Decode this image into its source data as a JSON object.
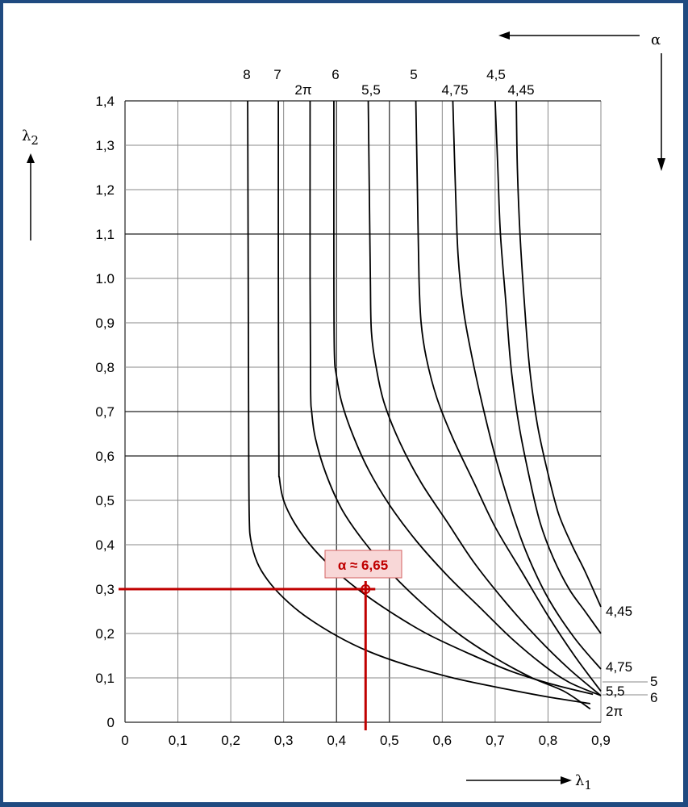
{
  "chart_data": {
    "type": "line",
    "title": "",
    "xlabel": "λ1",
    "ylabel": "λ2",
    "family_label": "α",
    "xlim": [
      0,
      0.9
    ],
    "ylim": [
      0,
      1.4
    ],
    "grid": true,
    "x_ticks": [
      "0",
      "0,1",
      "0,2",
      "0,3",
      "0,4",
      "0,5",
      "0,6",
      "0,7",
      "0,8",
      "0,9"
    ],
    "y_ticks": [
      "0",
      "0,1",
      "0,2",
      "0,3",
      "0,4",
      "0,5",
      "0,6",
      "0,7",
      "0,8",
      "0,9",
      "1.0",
      "1,1",
      "1,2",
      "1,3",
      "1,4"
    ],
    "series": [
      {
        "name": "8",
        "top_label": "8",
        "right_label": "",
        "points": [
          [
            0.232,
            1.4
          ],
          [
            0.233,
            1.0
          ],
          [
            0.234,
            0.6
          ],
          [
            0.235,
            0.46
          ],
          [
            0.238,
            0.41
          ],
          [
            0.25,
            0.36
          ],
          [
            0.27,
            0.32
          ],
          [
            0.3,
            0.28
          ],
          [
            0.34,
            0.24
          ],
          [
            0.4,
            0.195
          ],
          [
            0.46,
            0.16
          ],
          [
            0.53,
            0.13
          ],
          [
            0.62,
            0.1
          ],
          [
            0.72,
            0.075
          ],
          [
            0.8,
            0.057
          ],
          [
            0.88,
            0.042
          ]
        ]
      },
      {
        "name": "7",
        "top_label": "7",
        "right_label": "",
        "points": [
          [
            0.29,
            1.4
          ],
          [
            0.29,
            1.0
          ],
          [
            0.291,
            0.6
          ],
          [
            0.292,
            0.55
          ],
          [
            0.3,
            0.5
          ],
          [
            0.32,
            0.45
          ],
          [
            0.35,
            0.4
          ],
          [
            0.39,
            0.35
          ],
          [
            0.44,
            0.3
          ],
          [
            0.5,
            0.25
          ],
          [
            0.57,
            0.2
          ],
          [
            0.65,
            0.155
          ],
          [
            0.73,
            0.115
          ],
          [
            0.81,
            0.085
          ],
          [
            0.885,
            0.063
          ]
        ]
      },
      {
        "name": "2π",
        "top_label": "2π",
        "right_label": "2π",
        "points": [
          [
            0.35,
            1.4
          ],
          [
            0.35,
            1.0
          ],
          [
            0.351,
            0.75
          ],
          [
            0.353,
            0.7
          ],
          [
            0.36,
            0.64
          ],
          [
            0.38,
            0.56
          ],
          [
            0.41,
            0.48
          ],
          [
            0.45,
            0.41
          ],
          [
            0.5,
            0.34
          ],
          [
            0.56,
            0.27
          ],
          [
            0.63,
            0.2
          ],
          [
            0.7,
            0.145
          ],
          [
            0.77,
            0.1
          ],
          [
            0.83,
            0.07
          ],
          [
            0.88,
            0.03
          ]
        ]
      },
      {
        "name": "6",
        "top_label": "6",
        "right_label": "6",
        "points": [
          [
            0.395,
            1.4
          ],
          [
            0.395,
            1.0
          ],
          [
            0.396,
            0.83
          ],
          [
            0.4,
            0.78
          ],
          [
            0.41,
            0.72
          ],
          [
            0.43,
            0.65
          ],
          [
            0.46,
            0.57
          ],
          [
            0.5,
            0.49
          ],
          [
            0.55,
            0.41
          ],
          [
            0.61,
            0.33
          ],
          [
            0.67,
            0.26
          ],
          [
            0.73,
            0.19
          ],
          [
            0.79,
            0.13
          ],
          [
            0.84,
            0.09
          ],
          [
            0.9,
            0.06
          ]
        ]
      },
      {
        "name": "5,5",
        "top_label": "5,5",
        "right_label": "5,5",
        "points": [
          [
            0.46,
            1.4
          ],
          [
            0.462,
            1.2
          ],
          [
            0.464,
            1.0
          ],
          [
            0.466,
            0.88
          ],
          [
            0.475,
            0.8
          ],
          [
            0.49,
            0.72
          ],
          [
            0.52,
            0.63
          ],
          [
            0.56,
            0.54
          ],
          [
            0.61,
            0.45
          ],
          [
            0.66,
            0.36
          ],
          [
            0.72,
            0.27
          ],
          [
            0.78,
            0.19
          ],
          [
            0.84,
            0.12
          ],
          [
            0.9,
            0.06
          ]
        ]
      },
      {
        "name": "5",
        "top_label": "5",
        "right_label": "5",
        "points": [
          [
            0.55,
            1.4
          ],
          [
            0.553,
            1.2
          ],
          [
            0.556,
            1.0
          ],
          [
            0.56,
            0.9
          ],
          [
            0.57,
            0.82
          ],
          [
            0.59,
            0.73
          ],
          [
            0.62,
            0.64
          ],
          [
            0.66,
            0.54
          ],
          [
            0.7,
            0.44
          ],
          [
            0.75,
            0.34
          ],
          [
            0.8,
            0.24
          ],
          [
            0.85,
            0.15
          ],
          [
            0.9,
            0.07
          ]
        ]
      },
      {
        "name": "4,75",
        "top_label": "4,75",
        "right_label": "4,75",
        "points": [
          [
            0.62,
            1.4
          ],
          [
            0.625,
            1.2
          ],
          [
            0.63,
            1.05
          ],
          [
            0.64,
            0.93
          ],
          [
            0.655,
            0.83
          ],
          [
            0.675,
            0.72
          ],
          [
            0.7,
            0.6
          ],
          [
            0.73,
            0.48
          ],
          [
            0.76,
            0.38
          ],
          [
            0.8,
            0.28
          ],
          [
            0.85,
            0.19
          ],
          [
            0.9,
            0.12
          ]
        ]
      },
      {
        "name": "4,5",
        "top_label": "4,5",
        "right_label": "",
        "points": [
          [
            0.7,
            1.4
          ],
          [
            0.705,
            1.25
          ],
          [
            0.71,
            1.1
          ],
          [
            0.72,
            0.95
          ],
          [
            0.73,
            0.8
          ],
          [
            0.745,
            0.67
          ],
          [
            0.765,
            0.55
          ],
          [
            0.785,
            0.45
          ],
          [
            0.81,
            0.37
          ],
          [
            0.84,
            0.3
          ],
          [
            0.87,
            0.25
          ],
          [
            0.9,
            0.2
          ]
        ]
      },
      {
        "name": "4,45",
        "top_label": "4,45",
        "right_label": "4,45",
        "points": [
          [
            0.74,
            1.4
          ],
          [
            0.742,
            1.25
          ],
          [
            0.747,
            1.1
          ],
          [
            0.755,
            0.95
          ],
          [
            0.765,
            0.8
          ],
          [
            0.78,
            0.67
          ],
          [
            0.8,
            0.56
          ],
          [
            0.82,
            0.47
          ],
          [
            0.845,
            0.4
          ],
          [
            0.87,
            0.34
          ],
          [
            0.9,
            0.26
          ]
        ]
      }
    ],
    "annotation": {
      "text": "α ≈ 6,65",
      "x": 0.455,
      "y": 0.3,
      "color": "#c00000"
    }
  }
}
